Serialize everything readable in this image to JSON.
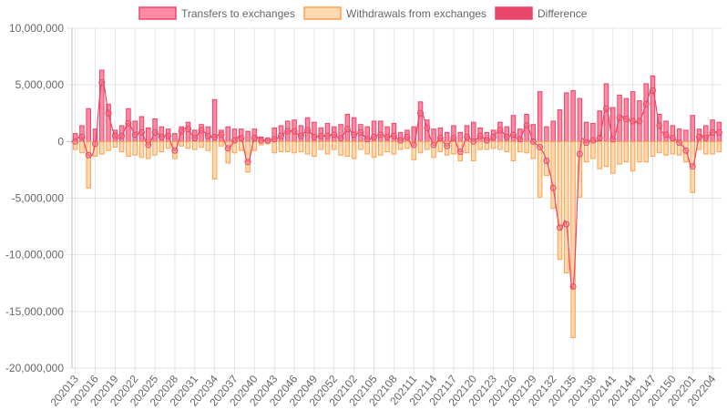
{
  "chart_data": {
    "type": "bar",
    "title": "",
    "xlabel": "",
    "ylabel": "",
    "ylim": [
      -20000000,
      10000000
    ],
    "y_ticks": [
      10000000,
      5000000,
      0,
      -5000000,
      -10000000,
      -15000000,
      -20000000
    ],
    "y_tick_labels": [
      "10,000,000",
      "5,000,000",
      "0",
      "-5,000,000",
      "-10,000,000",
      "-15,000,000",
      "-20,000,000"
    ],
    "grid": true,
    "legend_position": "top",
    "categories": [
      "202013",
      "202014",
      "202015",
      "202016",
      "202017",
      "202018",
      "202019",
      "202020",
      "202021",
      "202022",
      "202023",
      "202024",
      "202025",
      "202026",
      "202027",
      "202028",
      "202029",
      "202030",
      "202031",
      "202032",
      "202033",
      "202034",
      "202035",
      "202036",
      "202037",
      "202038",
      "202039",
      "202040",
      "202041",
      "202042",
      "202043",
      "202044",
      "202045",
      "202046",
      "202047",
      "202048",
      "202049",
      "202050",
      "202051",
      "202052",
      "202053",
      "202101",
      "202102",
      "202103",
      "202104",
      "202105",
      "202106",
      "202107",
      "202108",
      "202109",
      "202110",
      "202111",
      "202112",
      "202113",
      "202114",
      "202115",
      "202116",
      "202117",
      "202118",
      "202119",
      "202120",
      "202121",
      "202122",
      "202123",
      "202124",
      "202125",
      "202126",
      "202127",
      "202128",
      "202129",
      "202130",
      "202131",
      "202132",
      "202133",
      "202134",
      "202135",
      "202136",
      "202137",
      "202138",
      "202139",
      "202140",
      "202141",
      "202142",
      "202143",
      "202144",
      "202145",
      "202146",
      "202147",
      "202148",
      "202149",
      "202150",
      "202151",
      "202152",
      "202201",
      "202202",
      "202203",
      "202204",
      "202205"
    ],
    "x_tick_labels": [
      "202013",
      "202016",
      "202019",
      "202022",
      "202025",
      "202028",
      "202031",
      "202034",
      "202037",
      "202040",
      "202043",
      "202046",
      "202049",
      "202052",
      "202102",
      "202105",
      "202108",
      "202111",
      "202114",
      "202117",
      "202120",
      "202123",
      "202126",
      "202129",
      "202132",
      "202135",
      "202138",
      "202141",
      "202144",
      "202147",
      "202150",
      "202201",
      "202204"
    ],
    "series": [
      {
        "name": "Transfers to exchanges",
        "color": "#ff6384",
        "values": [
          700000,
          1400000,
          2900000,
          1100000,
          6300000,
          3300000,
          1000000,
          1400000,
          2900000,
          1800000,
          2200000,
          1200000,
          2000000,
          1300000,
          1100000,
          700000,
          1300000,
          1700000,
          1000000,
          1500000,
          1300000,
          3700000,
          1000000,
          1300000,
          1100000,
          1100000,
          900000,
          1100000,
          400000,
          300000,
          1200000,
          1400000,
          1800000,
          1900000,
          1400000,
          2100000,
          1700000,
          1200000,
          1600000,
          1300000,
          1500000,
          2400000,
          2100000,
          1500000,
          1300000,
          1800000,
          1800000,
          1300000,
          1600000,
          800000,
          1000000,
          1300000,
          3500000,
          1900000,
          1100000,
          1200000,
          800000,
          1400000,
          800000,
          1400000,
          1700000,
          1200000,
          800000,
          1000000,
          1700000,
          1300000,
          2300000,
          1100000,
          2400000,
          1500000,
          4400000,
          1300000,
          1800000,
          2800000,
          4300000,
          4500000,
          3800000,
          1700000,
          1600000,
          2700000,
          5100000,
          3000000,
          4100000,
          3800000,
          4400000,
          3600000,
          5100000,
          5800000,
          2400000,
          1800000,
          1400000,
          1100000,
          1000000,
          2300000,
          1100000,
          1400000,
          1900000,
          1700000
        ]
      },
      {
        "name": "Withdrawals from exchanges",
        "color": "#ffb366",
        "values": [
          -700000,
          -1000000,
          -4100000,
          -1300000,
          -1100000,
          -800000,
          -500000,
          -900000,
          -1300000,
          -1200000,
          -1400000,
          -1500000,
          -1200000,
          -900000,
          -600000,
          -1500000,
          -400000,
          -600000,
          -700000,
          -500000,
          -800000,
          -3300000,
          -400000,
          -1900000,
          -1000000,
          -800000,
          -2700000,
          -800000,
          -300000,
          -200000,
          -1000000,
          -900000,
          -900000,
          -1000000,
          -900000,
          -1100000,
          -1300000,
          -700000,
          -1100000,
          -700000,
          -1200000,
          -1300000,
          -1500000,
          -700000,
          -1100000,
          -1400000,
          -1200000,
          -900000,
          -1100000,
          -700000,
          -600000,
          -1600000,
          -1000000,
          -700000,
          -1400000,
          -900000,
          -1200000,
          -1100000,
          -1700000,
          -1000000,
          -1700000,
          -700000,
          -700000,
          -600000,
          -700000,
          -900000,
          -1700000,
          -900000,
          -1000000,
          -1500000,
          -4900000,
          -3000000,
          -5900000,
          -10400000,
          -11600000,
          -17300000,
          -4900000,
          -1800000,
          -1500000,
          -2400000,
          -2200000,
          -2800000,
          -2000000,
          -1800000,
          -2600000,
          -1800000,
          -1800000,
          -1300000,
          -1000000,
          -1200000,
          -1100000,
          -1200000,
          -1800000,
          -4500000,
          -700000,
          -1100000,
          -1100000,
          -900000
        ]
      },
      {
        "name": "Difference",
        "color": "#e8466b",
        "values": [
          0,
          400000,
          -1200000,
          -200000,
          5200000,
          2500000,
          500000,
          500000,
          1600000,
          600000,
          800000,
          -300000,
          800000,
          400000,
          500000,
          -800000,
          900000,
          1100000,
          300000,
          1000000,
          500000,
          400000,
          600000,
          -600000,
          100000,
          300000,
          -1800000,
          300000,
          100000,
          100000,
          200000,
          500000,
          900000,
          900000,
          500000,
          1000000,
          400000,
          500000,
          500000,
          600000,
          300000,
          1100000,
          600000,
          800000,
          200000,
          400000,
          600000,
          400000,
          500000,
          100000,
          400000,
          -300000,
          2500000,
          1200000,
          -300000,
          300000,
          -400000,
          300000,
          -900000,
          400000,
          0,
          500000,
          100000,
          400000,
          1000000,
          400000,
          600000,
          200000,
          1400000,
          0,
          -500000,
          -1700000,
          -4100000,
          -7600000,
          -7300000,
          -12800000,
          -1100000,
          -100000,
          100000,
          300000,
          2900000,
          200000,
          2100000,
          2000000,
          1800000,
          1800000,
          3300000,
          4500000,
          1400000,
          600000,
          300000,
          -100000,
          -800000,
          -2200000,
          400000,
          300000,
          800000,
          800000
        ]
      }
    ]
  }
}
